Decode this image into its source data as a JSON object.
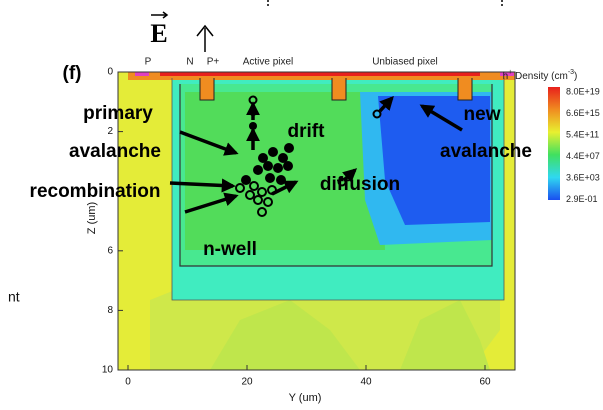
{
  "panel_label": "(f)",
  "field_symbol": "E",
  "top_labels": [
    "P",
    "N",
    "P+",
    "Active pixel",
    "Unbiased pixel"
  ],
  "colorbar": {
    "title": {
      "base": "h",
      "sup": "+",
      "text": " Density (cm",
      "exp": "-3",
      "close": ")"
    },
    "labels": [
      "8.0E+19",
      "6.6E+15",
      "5.4E+11",
      "4.4E+07",
      "3.6E+03",
      "2.9E-01"
    ]
  },
  "axes": {
    "x_label": "Y (um)",
    "y_label": "Z (um)",
    "x_ticks": [
      0,
      20,
      40,
      60
    ],
    "y_ticks": [
      0,
      2,
      6,
      8,
      10
    ]
  },
  "annotations": [
    "primary",
    "avalanche",
    "recombination",
    "drift",
    "diffusion",
    "new",
    "avalanche",
    "n-well",
    "nt"
  ]
}
